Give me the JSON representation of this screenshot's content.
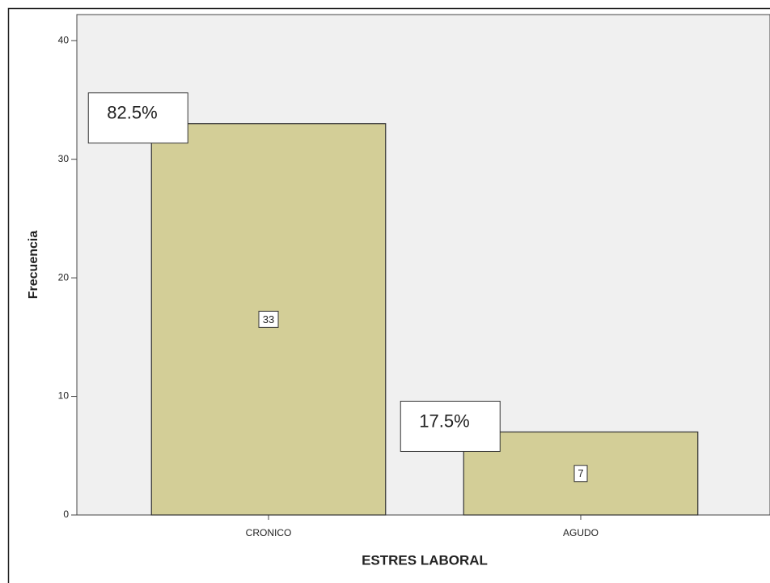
{
  "chart_data": {
    "type": "bar",
    "x_label": "ESTRES LABORAL",
    "y_label": "Frecuencia",
    "categories": [
      "CRONICO",
      "AGUDO"
    ],
    "values": [
      33,
      7
    ],
    "annotations": [
      {
        "value": 82.5,
        "label": "82.5%"
      },
      {
        "value": 17.5,
        "label": "17.5%"
      }
    ],
    "color": "#d3ce97",
    "ylim": [
      0,
      42.2
    ],
    "yticks": [
      0,
      10,
      20,
      30,
      40
    ]
  }
}
